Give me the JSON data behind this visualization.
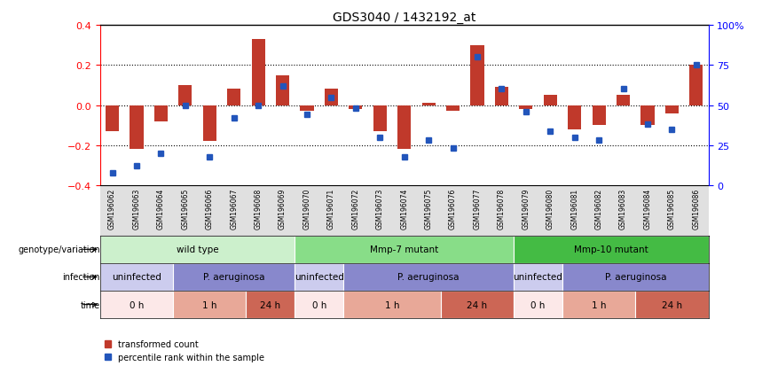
{
  "title": "GDS3040 / 1432192_at",
  "samples": [
    "GSM196062",
    "GSM196063",
    "GSM196064",
    "GSM196065",
    "GSM196066",
    "GSM196067",
    "GSM196068",
    "GSM196069",
    "GSM196070",
    "GSM196071",
    "GSM196072",
    "GSM196073",
    "GSM196074",
    "GSM196075",
    "GSM196076",
    "GSM196077",
    "GSM196078",
    "GSM196079",
    "GSM196080",
    "GSM196081",
    "GSM196082",
    "GSM196083",
    "GSM196084",
    "GSM196085",
    "GSM196086"
  ],
  "bar_values": [
    -0.13,
    -0.22,
    -0.08,
    0.1,
    -0.18,
    0.08,
    0.33,
    0.15,
    -0.03,
    0.08,
    -0.02,
    -0.13,
    -0.22,
    0.01,
    -0.03,
    0.3,
    0.09,
    -0.02,
    0.05,
    -0.12,
    -0.1,
    0.05,
    -0.1,
    -0.04,
    0.2
  ],
  "percentile_values": [
    8,
    12,
    20,
    50,
    18,
    42,
    50,
    62,
    44,
    55,
    48,
    30,
    18,
    28,
    23,
    80,
    60,
    46,
    34,
    30,
    28,
    60,
    38,
    35,
    75
  ],
  "bar_color": "#c0392b",
  "dot_color": "#2255bb",
  "ylim_left": [
    -0.4,
    0.4
  ],
  "ylim_right": [
    0,
    100
  ],
  "yticks_left": [
    -0.4,
    -0.2,
    0.0,
    0.2,
    0.4
  ],
  "yticks_right": [
    0,
    25,
    50,
    75,
    100
  ],
  "ytick_labels_right": [
    "0",
    "25",
    "50",
    "75",
    "100%"
  ],
  "dotted_lines": [
    -0.2,
    0.0,
    0.2
  ],
  "genotype_groups": [
    {
      "label": "wild type",
      "start": 0,
      "end": 8,
      "color": "#ccf0cc"
    },
    {
      "label": "Mmp-7 mutant",
      "start": 8,
      "end": 17,
      "color": "#88dd88"
    },
    {
      "label": "Mmp-10 mutant",
      "start": 17,
      "end": 25,
      "color": "#44bb44"
    }
  ],
  "infection_groups": [
    {
      "label": "uninfected",
      "start": 0,
      "end": 3,
      "color": "#ccccee"
    },
    {
      "label": "P. aeruginosa",
      "start": 3,
      "end": 8,
      "color": "#8888cc"
    },
    {
      "label": "uninfected",
      "start": 8,
      "end": 10,
      "color": "#ccccee"
    },
    {
      "label": "P. aeruginosa",
      "start": 10,
      "end": 17,
      "color": "#8888cc"
    },
    {
      "label": "uninfected",
      "start": 17,
      "end": 19,
      "color": "#ccccee"
    },
    {
      "label": "P. aeruginosa",
      "start": 19,
      "end": 25,
      "color": "#8888cc"
    }
  ],
  "time_groups": [
    {
      "label": "0 h",
      "start": 0,
      "end": 3,
      "color": "#fce8e8"
    },
    {
      "label": "1 h",
      "start": 3,
      "end": 6,
      "color": "#e8a898"
    },
    {
      "label": "24 h",
      "start": 6,
      "end": 8,
      "color": "#cc6655"
    },
    {
      "label": "0 h",
      "start": 8,
      "end": 10,
      "color": "#fce8e8"
    },
    {
      "label": "1 h",
      "start": 10,
      "end": 14,
      "color": "#e8a898"
    },
    {
      "label": "24 h",
      "start": 14,
      "end": 17,
      "color": "#cc6655"
    },
    {
      "label": "0 h",
      "start": 17,
      "end": 19,
      "color": "#fce8e8"
    },
    {
      "label": "1 h",
      "start": 19,
      "end": 22,
      "color": "#e8a898"
    },
    {
      "label": "24 h",
      "start": 22,
      "end": 25,
      "color": "#cc6655"
    }
  ],
  "row_labels": [
    "genotype/variation",
    "infection",
    "time"
  ],
  "legend_items": [
    {
      "label": "transformed count",
      "color": "#c0392b"
    },
    {
      "label": "percentile rank within the sample",
      "color": "#2255bb"
    }
  ],
  "tick_label_bg": "#e0e0e0"
}
